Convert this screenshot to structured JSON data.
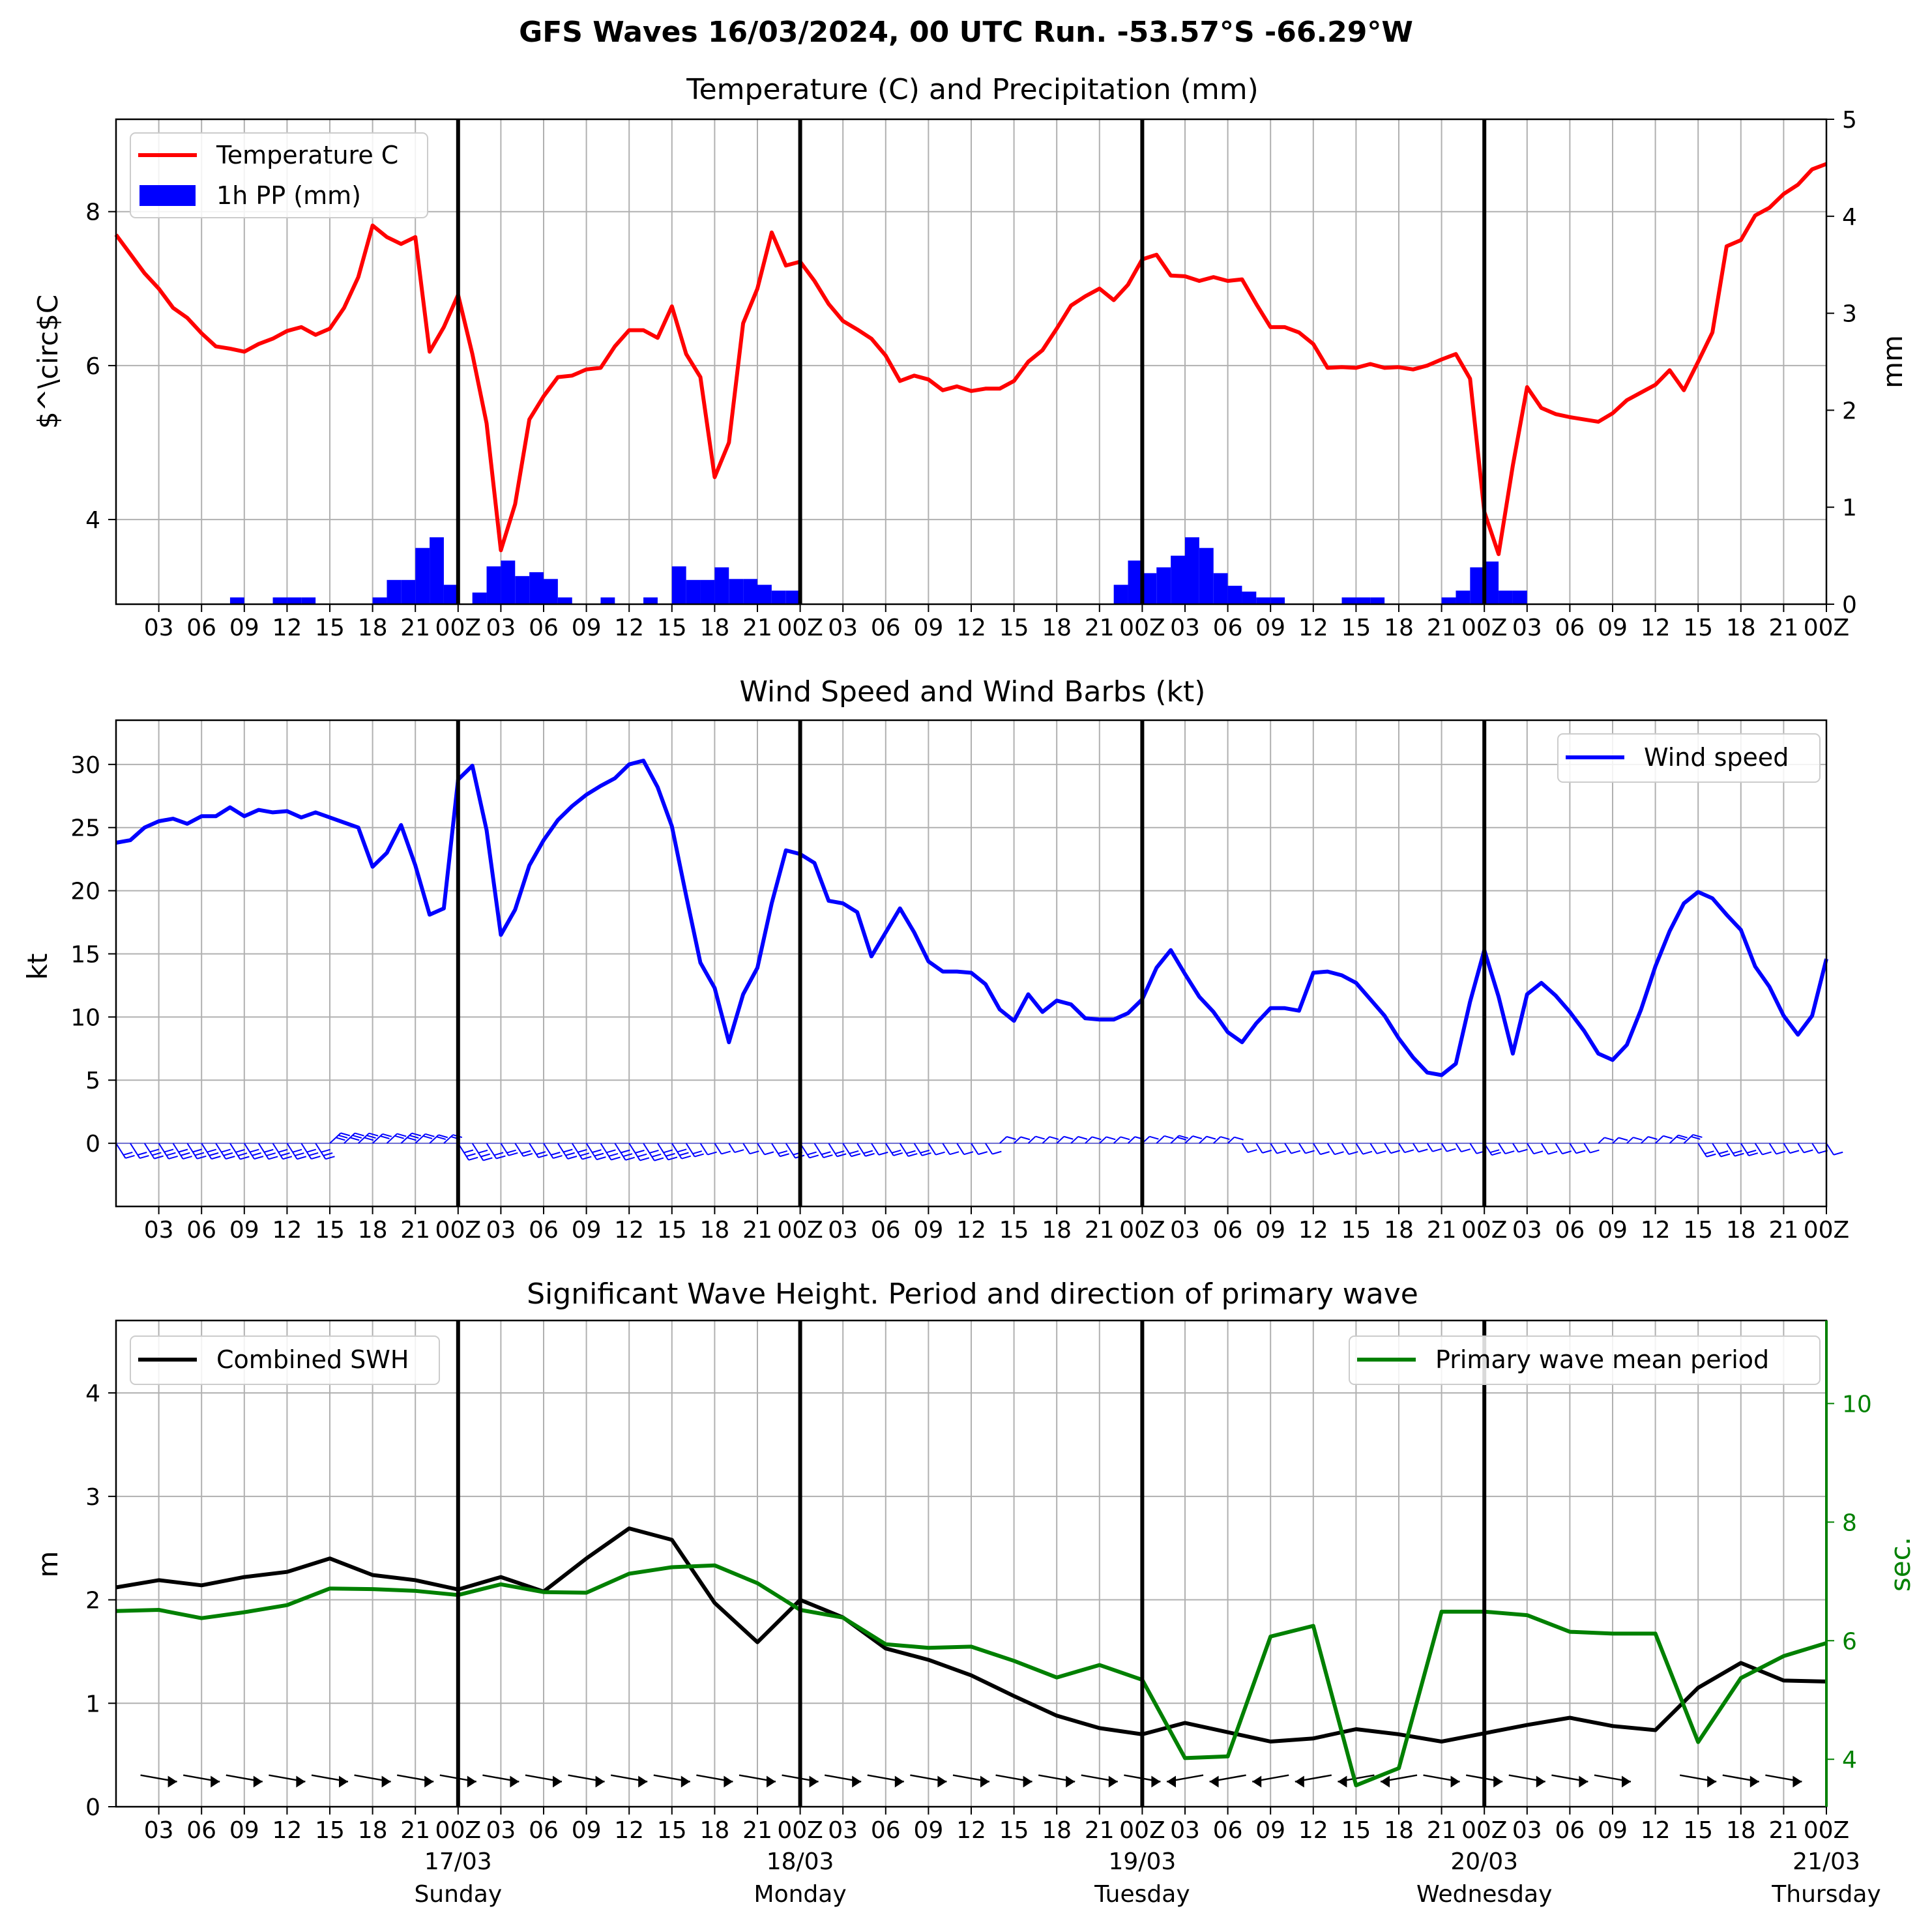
{
  "figure": {
    "title": "GFS Waves 16/03/2024, 00 UTC Run. -53.57°S -66.29°W"
  },
  "time_axis": {
    "start_hour": 0,
    "end_hour": 120,
    "tick_hours": [
      3,
      6,
      9,
      12,
      15,
      18,
      21,
      24,
      27,
      30,
      33,
      36,
      39,
      42,
      45,
      48,
      51,
      54,
      57,
      60,
      63,
      66,
      69,
      72,
      75,
      78,
      81,
      84,
      87,
      90,
      93,
      96,
      99,
      102,
      105,
      108,
      111,
      114,
      117,
      120
    ],
    "tick_labels": [
      "03",
      "06",
      "09",
      "12",
      "15",
      "18",
      "21",
      "00Z",
      "03",
      "06",
      "09",
      "12",
      "15",
      "18",
      "21",
      "00Z",
      "03",
      "06",
      "09",
      "12",
      "15",
      "18",
      "21",
      "00Z",
      "03",
      "06",
      "09",
      "12",
      "15",
      "18",
      "21",
      "00Z",
      "03",
      "06",
      "09",
      "12",
      "15",
      "18",
      "21",
      "00Z"
    ],
    "day_separators": [
      24,
      48,
      72,
      96
    ],
    "day_labels": [
      {
        "hour": 24,
        "date": "17/03",
        "weekday": "Sunday"
      },
      {
        "hour": 48,
        "date": "18/03",
        "weekday": "Monday"
      },
      {
        "hour": 72,
        "date": "19/03",
        "weekday": "Tuesday"
      },
      {
        "hour": 96,
        "date": "20/03",
        "weekday": "Wednesday"
      },
      {
        "hour": 120,
        "date": "21/03",
        "weekday": "Thursday"
      }
    ]
  },
  "chart_data": [
    {
      "type": "line",
      "title": "Temperature (C) and Precipitation (mm)",
      "ylabel": "$^\\circ$C",
      "y2label": "mm",
      "ylim": [
        2.9,
        9.2
      ],
      "y2lim": [
        0,
        5
      ],
      "yticks": [
        4,
        6,
        8
      ],
      "y2ticks": [
        0,
        1,
        2,
        3,
        4,
        5
      ],
      "grid": true,
      "legend_position": "top-left",
      "legend": [
        "Temperature C",
        "1h PP (mm)"
      ],
      "colors": {
        "temperature": "#ff0000",
        "precipitation": "#0000ff"
      },
      "temperature": {
        "name": "Temperature C",
        "x": [
          0,
          1,
          2,
          3,
          4,
          5,
          6,
          7,
          8,
          9,
          10,
          11,
          12,
          13,
          14,
          15,
          16,
          17,
          18,
          19,
          20,
          21,
          22,
          23,
          24,
          25,
          26,
          27,
          28,
          29,
          30,
          31,
          32,
          33,
          34,
          35,
          36,
          37,
          38,
          39,
          40,
          41,
          42,
          43,
          44,
          45,
          46,
          47,
          48,
          49,
          50,
          51,
          52,
          53,
          54,
          55,
          56,
          57,
          58,
          59,
          60,
          61,
          62,
          63,
          64,
          65,
          66,
          67,
          68,
          69,
          70,
          71,
          72,
          73,
          74,
          75,
          76,
          77,
          78,
          79,
          80,
          81,
          82,
          83,
          84,
          85,
          86,
          87,
          88,
          89,
          90,
          91,
          92,
          93,
          94,
          95,
          96,
          97,
          98,
          99,
          100,
          101,
          102,
          103,
          104,
          105,
          106,
          107,
          108,
          109,
          110,
          111,
          112,
          113,
          114,
          115,
          116,
          117,
          118,
          119,
          120
        ],
        "values": [
          7.7,
          7.45,
          7.2,
          7.0,
          6.75,
          6.62,
          6.42,
          6.25,
          6.22,
          6.18,
          6.28,
          6.35,
          6.45,
          6.5,
          6.4,
          6.48,
          6.75,
          7.15,
          7.82,
          7.67,
          7.58,
          7.67,
          6.18,
          6.5,
          6.92,
          6.15,
          5.25,
          3.6,
          4.2,
          5.3,
          5.6,
          5.85,
          5.87,
          5.95,
          5.97,
          6.25,
          6.46,
          6.46,
          6.36,
          6.77,
          6.15,
          5.85,
          4.55,
          5.0,
          6.55,
          7.0,
          7.73,
          7.3,
          7.35,
          7.1,
          6.8,
          6.58,
          6.47,
          6.35,
          6.13,
          5.8,
          5.87,
          5.82,
          5.68,
          5.73,
          5.67,
          5.7,
          5.7,
          5.8,
          6.05,
          6.2,
          6.48,
          6.78,
          6.9,
          7.0,
          6.85,
          7.05,
          7.38,
          7.44,
          7.17,
          7.16,
          7.1,
          7.15,
          7.1,
          7.12,
          6.8,
          6.5,
          6.5,
          6.43,
          6.28,
          5.97,
          5.98,
          5.97,
          6.02,
          5.97,
          5.98,
          5.95,
          6.0,
          6.08,
          6.15,
          5.83,
          4.1,
          3.55,
          4.7,
          5.72,
          5.45,
          5.37,
          5.33,
          5.3,
          5.27,
          5.38,
          5.55,
          5.65,
          5.75,
          5.94,
          5.68,
          6.05,
          6.43,
          7.55,
          7.63,
          7.95,
          8.05,
          8.23,
          8.35,
          8.55,
          8.62
        ]
      },
      "precipitation": {
        "name": "1h PP (mm)",
        "x": [
          8,
          11,
          12,
          13,
          18,
          19,
          20,
          21,
          22,
          23,
          25,
          26,
          27,
          28,
          29,
          30,
          31,
          34,
          37,
          39,
          40,
          41,
          42,
          43,
          44,
          45,
          46,
          47,
          70,
          71,
          72,
          73,
          74,
          75,
          76,
          77,
          78,
          79,
          80,
          81,
          86,
          87,
          88,
          93,
          94,
          95,
          96,
          97,
          98
        ],
        "values": [
          0.07,
          0.07,
          0.07,
          0.07,
          0.07,
          0.25,
          0.25,
          0.58,
          0.69,
          0.2,
          0.12,
          0.39,
          0.45,
          0.29,
          0.33,
          0.26,
          0.07,
          0.07,
          0.07,
          0.39,
          0.25,
          0.25,
          0.38,
          0.26,
          0.26,
          0.2,
          0.14,
          0.14,
          0.2,
          0.45,
          0.32,
          0.38,
          0.5,
          0.69,
          0.58,
          0.32,
          0.19,
          0.13,
          0.07,
          0.07,
          0.07,
          0.07,
          0.07,
          0.07,
          0.14,
          0.38,
          0.44,
          0.14,
          0.14
        ]
      }
    },
    {
      "type": "line",
      "title": "Wind Speed and Wind Barbs (kt)",
      "ylabel": "kt",
      "ylim": [
        -5,
        33.5
      ],
      "yticks": [
        0,
        5,
        10,
        15,
        20,
        25,
        30
      ],
      "grid": true,
      "legend_position": "top-right",
      "legend": [
        "Wind speed"
      ],
      "colors": {
        "wind": "#0000ff"
      },
      "wind_speed": {
        "name": "Wind speed",
        "x": [
          0,
          1,
          2,
          3,
          4,
          5,
          6,
          7,
          8,
          9,
          10,
          11,
          12,
          13,
          14,
          15,
          16,
          17,
          18,
          19,
          20,
          21,
          22,
          23,
          24,
          25,
          26,
          27,
          28,
          29,
          30,
          31,
          32,
          33,
          34,
          35,
          36,
          37,
          38,
          39,
          40,
          41,
          42,
          43,
          44,
          45,
          46,
          47,
          48,
          49,
          50,
          51,
          52,
          53,
          54,
          55,
          56,
          57,
          58,
          59,
          60,
          61,
          62,
          63,
          64,
          65,
          66,
          67,
          68,
          69,
          70,
          71,
          72,
          73,
          74,
          75,
          76,
          77,
          78,
          79,
          80,
          81,
          82,
          83,
          84,
          85,
          86,
          87,
          88,
          89,
          90,
          91,
          92,
          93,
          94,
          95,
          96,
          97,
          98,
          99,
          100,
          101,
          102,
          103,
          104,
          105,
          106,
          107,
          108,
          109,
          110,
          111,
          112,
          113,
          114,
          115,
          116,
          117,
          118,
          119,
          120
        ],
        "values": [
          23.8,
          24.0,
          25.0,
          25.5,
          25.7,
          25.3,
          25.9,
          25.9,
          26.6,
          25.9,
          26.4,
          26.2,
          26.3,
          25.8,
          26.2,
          25.8,
          25.4,
          25.0,
          21.9,
          23.0,
          25.2,
          22.0,
          18.1,
          18.6,
          28.8,
          29.9,
          24.8,
          16.5,
          18.5,
          22.0,
          24.0,
          25.6,
          26.7,
          27.6,
          28.3,
          28.9,
          30.0,
          30.3,
          28.2,
          25.1,
          19.6,
          14.3,
          12.3,
          8.0,
          11.8,
          13.9,
          19.0,
          23.2,
          22.9,
          22.2,
          19.2,
          19.0,
          18.3,
          14.8,
          16.7,
          18.6,
          16.7,
          14.4,
          13.6,
          13.6,
          13.5,
          12.6,
          10.6,
          9.7,
          11.8,
          10.4,
          11.3,
          11.0,
          9.9,
          9.8,
          9.8,
          10.3,
          11.4,
          13.9,
          15.3,
          13.4,
          11.6,
          10.4,
          8.8,
          8.0,
          9.5,
          10.7,
          10.7,
          10.5,
          13.5,
          13.6,
          13.3,
          12.7,
          11.4,
          10.1,
          8.3,
          6.8,
          5.6,
          5.4,
          6.3,
          11.2,
          15.3,
          11.6,
          7.1,
          11.8,
          12.7,
          11.7,
          10.4,
          8.9,
          7.1,
          6.6,
          7.8,
          10.6,
          14.0,
          16.8,
          19.0,
          19.9,
          19.4,
          18.1,
          16.9,
          14.0,
          12.4,
          10.1,
          8.6,
          10.1,
          14.6
        ]
      }
    },
    {
      "type": "line",
      "title": "Significant Wave Height. Period and direction of primary wave",
      "ylabel": "m",
      "y2label": "sec.",
      "ylim": [
        0,
        4.7
      ],
      "y2lim": [
        3.2,
        11.4
      ],
      "yticks": [
        0,
        1,
        2,
        3,
        4
      ],
      "y2ticks": [
        4,
        6,
        8,
        10
      ],
      "grid": true,
      "legend": [
        "Combined SWH",
        "Primary wave mean period"
      ],
      "legend_positions": [
        "top-left",
        "top-right"
      ],
      "colors": {
        "swh": "#000000",
        "period": "#008000",
        "period_axis": "#008000"
      },
      "swh": {
        "name": "Combined SWH",
        "x": [
          0,
          3,
          6,
          9,
          12,
          15,
          18,
          21,
          24,
          27,
          30,
          33,
          36,
          39,
          42,
          45,
          48,
          51,
          54,
          57,
          60,
          63,
          66,
          69,
          72,
          75,
          78,
          81,
          84,
          87,
          90,
          93,
          96,
          99,
          102,
          105,
          108,
          111,
          114,
          117,
          120
        ],
        "values": [
          2.12,
          2.19,
          2.14,
          2.22,
          2.27,
          2.4,
          2.24,
          2.19,
          2.1,
          2.22,
          2.08,
          2.4,
          2.69,
          2.58,
          1.97,
          1.59,
          2.0,
          1.83,
          1.53,
          1.42,
          1.27,
          1.07,
          0.88,
          0.76,
          0.7,
          0.81,
          0.72,
          0.63,
          0.66,
          0.75,
          0.7,
          0.63,
          0.71,
          0.79,
          0.86,
          0.78,
          0.74,
          1.15,
          1.39,
          1.22,
          1.21
        ]
      },
      "period": {
        "name": "Primary wave mean period",
        "x": [
          0,
          3,
          6,
          9,
          12,
          15,
          18,
          21,
          24,
          27,
          30,
          33,
          36,
          39,
          42,
          45,
          48,
          51,
          54,
          57,
          60,
          63,
          66,
          69,
          72,
          75,
          78,
          81,
          84,
          87,
          90,
          93,
          96,
          99,
          102,
          105,
          108,
          111,
          114,
          117,
          120
        ],
        "values": [
          6.5,
          6.52,
          6.38,
          6.48,
          6.6,
          6.88,
          6.87,
          6.84,
          6.77,
          6.95,
          6.82,
          6.81,
          7.13,
          7.24,
          7.27,
          6.97,
          6.52,
          6.39,
          5.94,
          5.88,
          5.9,
          5.66,
          5.38,
          5.59,
          5.34,
          4.02,
          4.05,
          6.07,
          6.25,
          3.56,
          3.85,
          6.49,
          6.49,
          6.43,
          6.15,
          6.12,
          6.12,
          4.29,
          5.37,
          5.74,
          5.96
        ]
      }
    }
  ]
}
